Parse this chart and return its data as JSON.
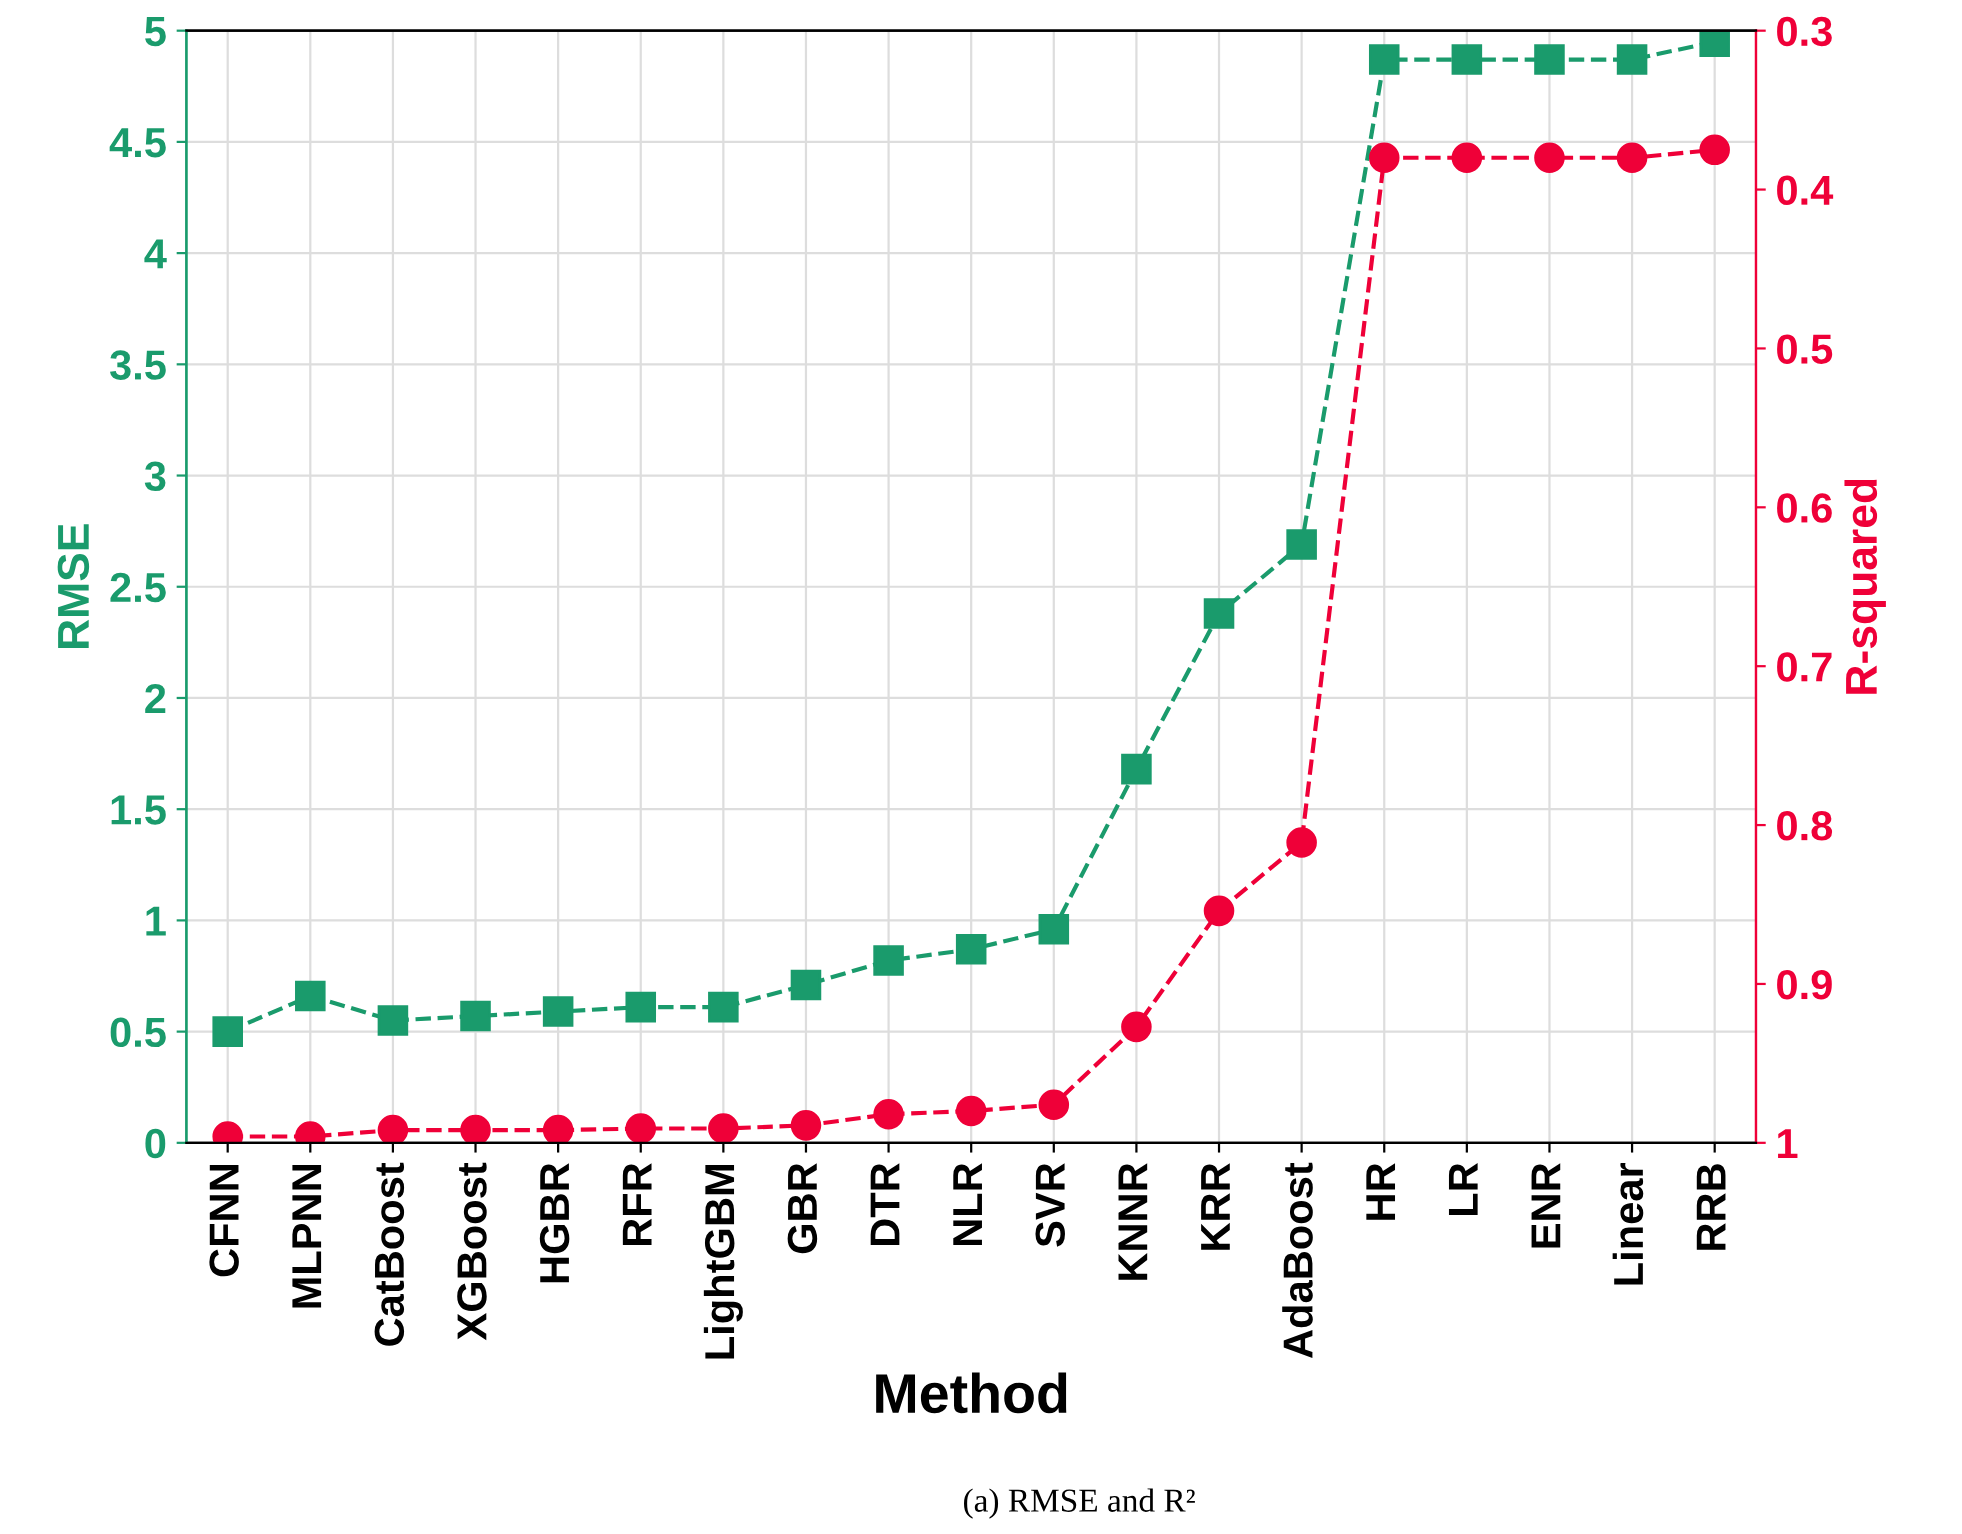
{
  "chart_data": {
    "type": "line",
    "xlabel": "Method",
    "ylabel": "RMSE",
    "y2label": "R-squared",
    "categories": [
      "CFNN",
      "MLPNN",
      "CatBoost",
      "XGBoost",
      "HGBR",
      "RFR",
      "LightGBM",
      "GBR",
      "DTR",
      "NLR",
      "SVR",
      "KNNR",
      "KRR",
      "AdaBoost",
      "HR",
      "LR",
      "ENR",
      "Linear",
      "RRB"
    ],
    "series": [
      {
        "color": "#1a9b6c",
        "marker": "square",
        "line_style": "dashed",
        "values": [
          0.5,
          0.66,
          0.55,
          0.57,
          0.59,
          0.61,
          0.61,
          0.71,
          0.82,
          0.87,
          0.96,
          1.68,
          2.38,
          2.69,
          4.87,
          4.87,
          4.87,
          4.87,
          4.95
        ]
      },
      {
        "color": "#ef0038",
        "marker": "circle",
        "line_style": "dashed",
        "axis": "y2",
        "values": [
          0.996,
          0.996,
          0.992,
          0.992,
          0.992,
          0.991,
          0.991,
          0.989,
          0.982,
          0.98,
          0.976,
          0.927,
          0.854,
          0.811,
          0.38,
          0.38,
          0.38,
          0.38,
          0.375
        ]
      }
    ],
    "ylim": [
      0,
      5
    ],
    "yticks": [
      0,
      0.5,
      1,
      1.5,
      2,
      2.5,
      3,
      3.5,
      4,
      4.5,
      5
    ],
    "y2lim": [
      1,
      0.3
    ],
    "y2ticks": [
      1,
      0.9,
      0.8,
      0.7,
      0.6,
      0.5,
      0.4,
      0.3
    ],
    "grid": true,
    "legend": false,
    "annotations": [
      "(a) RMSE and R²"
    ]
  }
}
